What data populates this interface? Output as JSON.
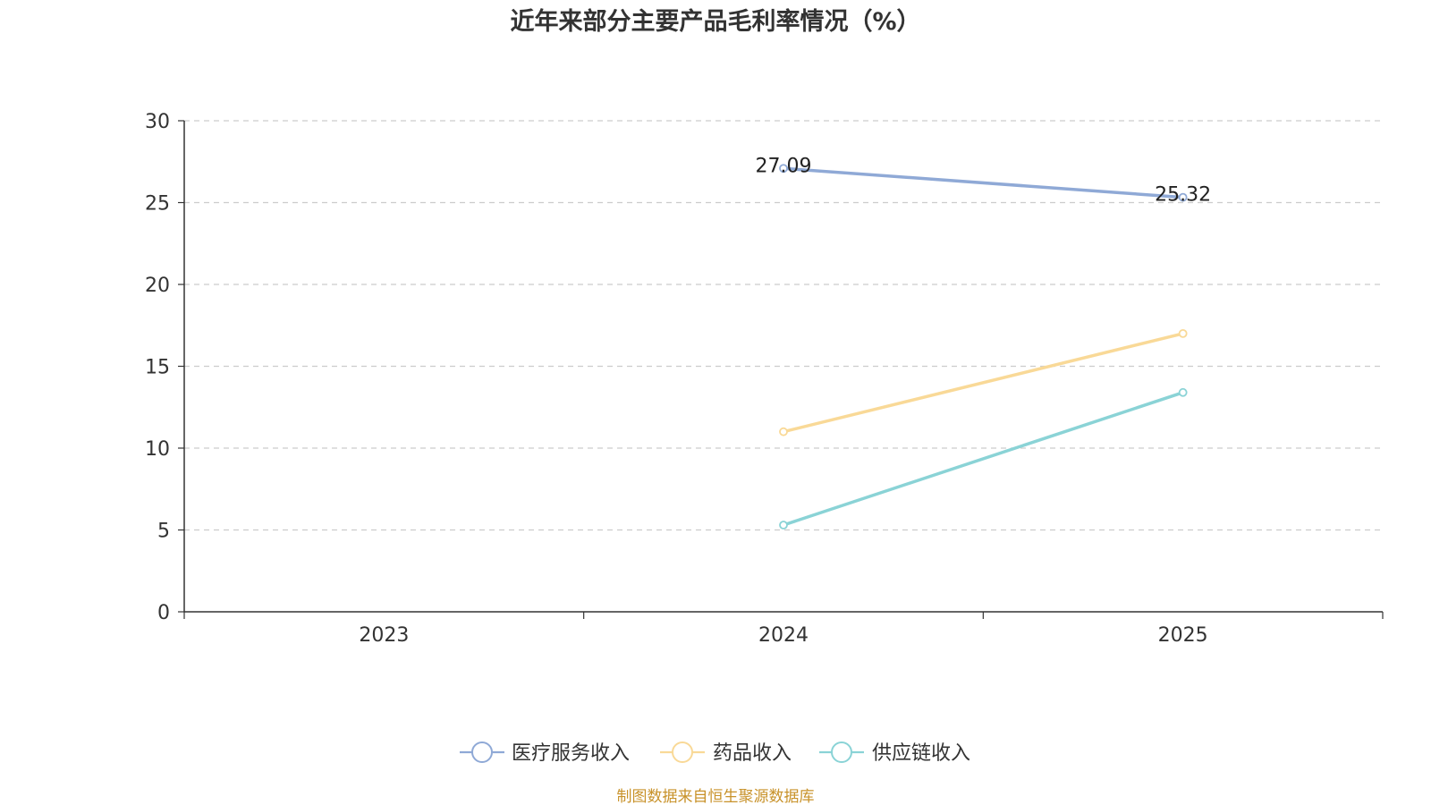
{
  "chart_data": {
    "type": "line",
    "title": "近年来部分主要产品毛利率情况（%）",
    "categories": [
      "2023",
      "2024",
      "2025"
    ],
    "ylim": [
      0,
      30
    ],
    "yticks": [
      0,
      5,
      10,
      15,
      20,
      25,
      30
    ],
    "ytick_labels": [
      "0",
      "5",
      "10",
      "15",
      "20",
      "25",
      "30"
    ],
    "grid": true,
    "legend_position": "bottom-center",
    "series": [
      {
        "name": "医疗服务收入",
        "color": "#8fa9d6",
        "values": [
          null,
          27.09,
          25.32
        ],
        "labels": [
          null,
          "27.09",
          "25.32"
        ]
      },
      {
        "name": "药品收入",
        "color": "#f9d997",
        "values": [
          null,
          11.0,
          17.0
        ],
        "labels": [
          null,
          null,
          null
        ]
      },
      {
        "name": "供应链收入",
        "color": "#8ad3d6",
        "values": [
          null,
          5.3,
          13.4
        ],
        "labels": [
          null,
          null,
          null
        ]
      }
    ]
  },
  "source": {
    "text": "制图数据来自恒生聚源数据库"
  }
}
